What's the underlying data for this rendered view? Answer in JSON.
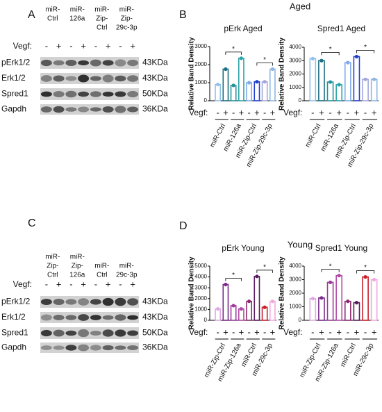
{
  "panels": [
    {
      "label": "A",
      "lanes": [
        [
          "miR-",
          "Ctrl"
        ],
        [
          "miR-",
          "126a"
        ],
        [
          "miR-",
          "Zip-",
          "Ctrl"
        ],
        [
          "miR-",
          "Zip-",
          "29c-3p"
        ]
      ],
      "vegf_label": "Vegf:",
      "vegf": [
        "-",
        "+"
      ],
      "rows": [
        {
          "name": "pErk1/2",
          "size": "43KDa"
        },
        {
          "name": "Erk1/2",
          "size": "43KDa"
        },
        {
          "name": "Spred1",
          "size": "50KDa"
        },
        {
          "name": "Gapdh",
          "size": "36KDa"
        }
      ]
    },
    {
      "label": "C",
      "lanes": [
        [
          "miR-",
          "Zip-",
          "Ctrl"
        ],
        [
          "miR-",
          "Zip-",
          "126a"
        ],
        [
          "miR-",
          "Ctrl"
        ],
        [
          "miR-",
          "29c-3p"
        ]
      ],
      "vegf_label": "Vegf:",
      "vegf": [
        "-",
        "+"
      ],
      "rows": [
        {
          "name": "pErk1/2",
          "size": "43KDa"
        },
        {
          "name": "Erk1/2",
          "size": "43KDa"
        },
        {
          "name": "Spred1",
          "size": "50KDa"
        },
        {
          "name": "Gapdh",
          "size": "36KDa"
        }
      ]
    }
  ],
  "headers": [
    {
      "label": "B",
      "title": "Aged"
    },
    {
      "label": "D",
      "title": "Young"
    }
  ],
  "chart_data": [
    {
      "type": "bar",
      "title": "pErk Aged",
      "y_label": "Relative Band Density",
      "x_label": "Vegf:",
      "categories": [
        "miR-Ctrl",
        "miR-126a",
        "miR-Zip-Ctrl",
        "miR-Zip-29c-3p"
      ],
      "series": [
        {
          "name": "-",
          "colors": [
            "#8fc1ea",
            "#23939b",
            "#7fa9ea",
            "#a3a6dc"
          ],
          "values": [
            900,
            850,
            1000,
            1050
          ]
        },
        {
          "name": "+",
          "colors": [
            "#1a6f80",
            "#2aa3a8",
            "#1f3fd0",
            "#8fb5e3"
          ],
          "values": [
            1750,
            2350,
            1050,
            1750
          ]
        }
      ],
      "ylim": [
        0,
        3000
      ],
      "yticks": [
        0,
        1000,
        2000,
        3000
      ],
      "annotations": [
        "*",
        "*"
      ]
    },
    {
      "type": "bar",
      "title": "Spred1 Aged",
      "y_label": "Relative Band Density",
      "x_label": "Vegf:",
      "categories": [
        "miR-Ctrl",
        "miR-126a",
        "miR-Zip-Ctrl",
        "miR-Zip-29c-3p"
      ],
      "series": [
        {
          "name": "-",
          "colors": [
            "#8fc1ea",
            "#23939b",
            "#7fa9ea",
            "#a3a6dc"
          ],
          "values": [
            3150,
            1400,
            2850,
            1600
          ]
        },
        {
          "name": "+",
          "colors": [
            "#1a6f80",
            "#2aa3a8",
            "#1f3fd0",
            "#8fb5e3"
          ],
          "values": [
            3000,
            1200,
            3300,
            1600
          ]
        }
      ],
      "ylim": [
        0,
        4000
      ],
      "yticks": [
        0,
        1000,
        2000,
        3000,
        4000
      ],
      "annotations": [
        "*",
        "*"
      ]
    },
    {
      "type": "bar",
      "title": "pErk Young",
      "y_label": "Relative Band Density",
      "x_label": "Vegf:",
      "categories": [
        "miR-Zip-Ctrl",
        "miR-Zip-126a",
        "miR-Ctrl",
        "miR-29c-3p"
      ],
      "series": [
        {
          "name": "-",
          "colors": [
            "#e0a8e0",
            "#9b3a9b",
            "#8a2a6e",
            "#c8202a"
          ],
          "values": [
            1050,
            1350,
            1750,
            1200
          ]
        },
        {
          "name": "+",
          "colors": [
            "#7a2a8a",
            "#b04aa8",
            "#5a1a60",
            "#f2a8dc"
          ],
          "values": [
            3300,
            1050,
            4050,
            1750
          ]
        }
      ],
      "ylim": [
        0,
        5000
      ],
      "yticks": [
        0,
        1000,
        2000,
        3000,
        4000,
        5000
      ],
      "annotations": [
        "*",
        "*"
      ]
    },
    {
      "type": "bar",
      "title": "Spred1 Young",
      "y_label": "Relative Band Density",
      "x_label": "Vegf:",
      "categories": [
        "miR-Zip-Ctrl",
        "miR-Zip-126a",
        "miR-Ctrl",
        "miR-29c-3p"
      ],
      "series": [
        {
          "name": "-",
          "colors": [
            "#e0a8e0",
            "#9b3a9b",
            "#8a2a6e",
            "#c8202a"
          ],
          "values": [
            1600,
            2800,
            1400,
            3200
          ]
        },
        {
          "name": "+",
          "colors": [
            "#7a2a8a",
            "#b04aa8",
            "#5a1a60",
            "#f2a8dc"
          ],
          "values": [
            1650,
            3300,
            1300,
            3000
          ]
        }
      ],
      "ylim": [
        0,
        4000
      ],
      "yticks": [
        0,
        1000,
        2000,
        3000,
        4000
      ],
      "annotations": [
        "*",
        "*"
      ]
    }
  ]
}
